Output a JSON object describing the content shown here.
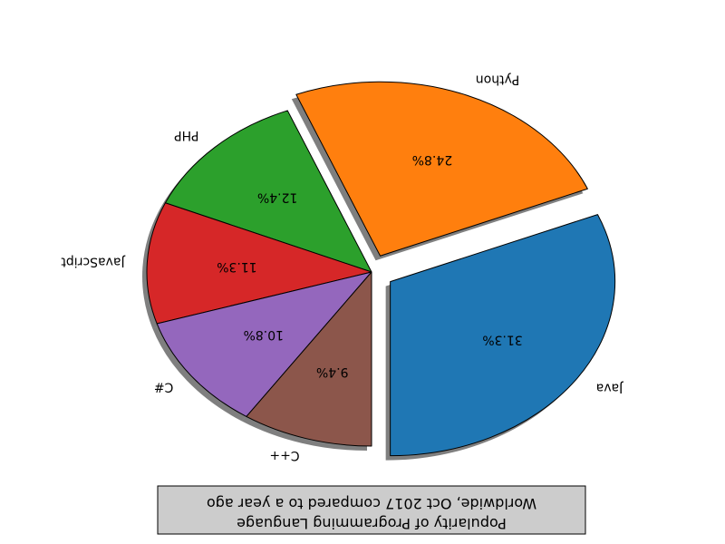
{
  "chart_data": {
    "type": "pie",
    "title": [
      "Popularity of Programming Language",
      "Worldwide, Oct 2017 compared to a year ago"
    ],
    "rendering": "upside-down (rotated 180 degrees)",
    "shadow": true,
    "exploded": [
      "Java",
      "Python"
    ],
    "slices": [
      {
        "label": "Java",
        "value": 31.3,
        "pct_label": "31.3%",
        "color": "#1f77b4"
      },
      {
        "label": "Python",
        "value": 24.8,
        "pct_label": "24.8%",
        "color": "#ff7f0e"
      },
      {
        "label": "PHP",
        "value": 12.4,
        "pct_label": "12.4%",
        "color": "#2ca02c"
      },
      {
        "label": "JavaScript",
        "value": 11.3,
        "pct_label": "11.3%",
        "color": "#d62728"
      },
      {
        "label": "C#",
        "value": 10.8,
        "pct_label": "10.8%",
        "color": "#9467bd"
      },
      {
        "label": "C++",
        "value": 9.4,
        "pct_label": "9.4%",
        "color": "#8c564b"
      }
    ]
  }
}
